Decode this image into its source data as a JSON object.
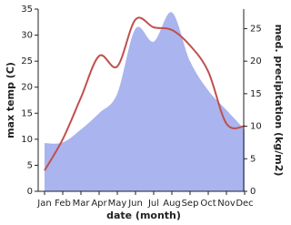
{
  "chart_data": {
    "type": "line",
    "x_label": "date (month)",
    "y_label": "max temp (C)",
    "y2_label": "med. precipitation (kg/m2)",
    "categories": [
      "Jan",
      "Feb",
      "Mar",
      "Apr",
      "May",
      "Jun",
      "Jul",
      "Aug",
      "Sep",
      "Oct",
      "Nov",
      "Dec"
    ],
    "ylim": [
      0,
      35
    ],
    "yticks": [
      0,
      5,
      10,
      15,
      20,
      25,
      30,
      35
    ],
    "y2lim": [
      0,
      28
    ],
    "y2ticks": [
      0,
      5,
      10,
      15,
      20,
      25
    ],
    "series": [
      {
        "name": "med. precipitation",
        "axis": "y2",
        "kind": "area",
        "color": "#aab4ee",
        "values": [
          7.4,
          7.5,
          9.5,
          12,
          15,
          25,
          23,
          27.5,
          20,
          15.5,
          12.5,
          9.5
        ]
      },
      {
        "name": "max temp",
        "kind": "line",
        "color": "#c0504d",
        "values": [
          4,
          10,
          18,
          26,
          24,
          33,
          31.5,
          31,
          28,
          23,
          13,
          12.5
        ]
      }
    ]
  }
}
